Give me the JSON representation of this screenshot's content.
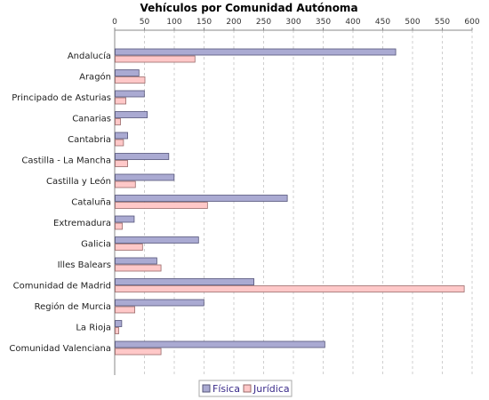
{
  "colors": {
    "background": "#ffffff",
    "fisica_fill": "#aaaad2",
    "fisica_stroke": "#55557a",
    "juridica_fill": "#ffc8c8",
    "juridica_stroke": "#9a6a6a",
    "grid": "#cfcfcf",
    "axis": "#888888",
    "legend_border": "#aaaaaa"
  },
  "chart_data": {
    "type": "bar",
    "orientation": "horizontal",
    "title": "Vehículos por Comunidad Autónoma",
    "xlabel": "",
    "ylabel": "",
    "xlim": [
      0,
      600
    ],
    "x_ticks": [
      0,
      50,
      100,
      150,
      200,
      250,
      300,
      350,
      400,
      450,
      500,
      550,
      600
    ],
    "x_axis_position": "top",
    "grid": true,
    "legend_placement": "bottom-center",
    "categories": [
      "Andalucía",
      "Aragón",
      "Principado de Asturias",
      "Canarias",
      "Cantabria",
      "Castilla - La Mancha",
      "Castilla y León",
      "Cataluña",
      "Extremadura",
      "Galicia",
      "Illes Balears",
      "Comunidad de Madrid",
      "Región de Murcia",
      "La Rioja",
      "Comunidad Valenciana"
    ],
    "series": [
      {
        "name": "Física",
        "values": [
          471,
          40,
          49,
          54,
          21,
          90,
          99,
          289,
          32,
          140,
          70,
          233,
          149,
          11,
          352
        ]
      },
      {
        "name": "Jurídica",
        "values": [
          134,
          50,
          18,
          9,
          14,
          21,
          34,
          155,
          12,
          46,
          77,
          586,
          33,
          6,
          77
        ]
      }
    ]
  }
}
